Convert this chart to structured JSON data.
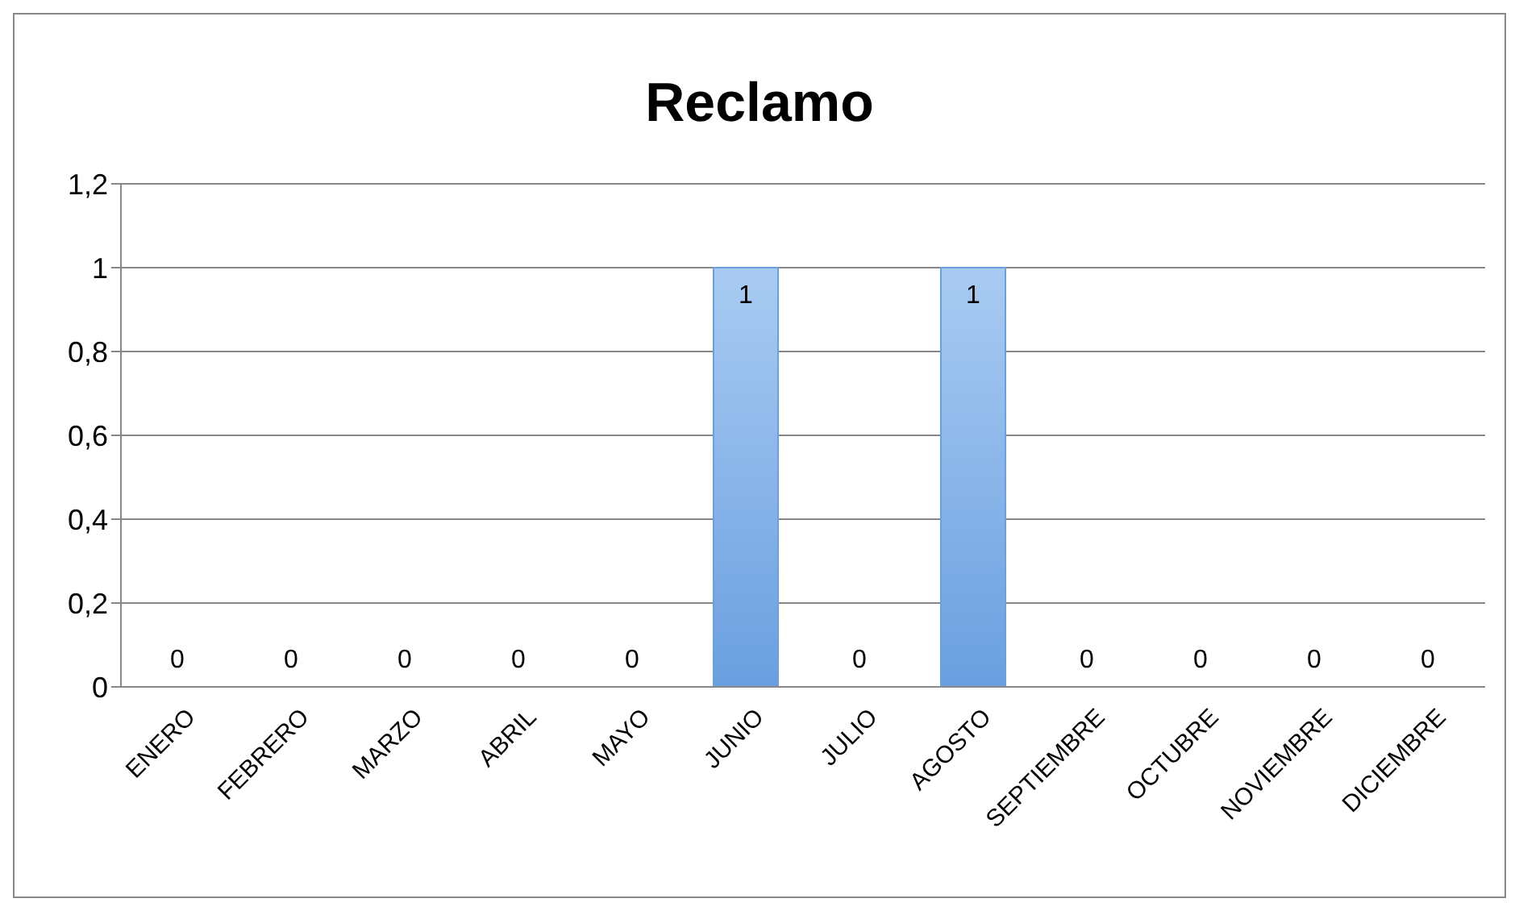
{
  "chart_data": {
    "type": "bar",
    "title": "Reclamo",
    "categories": [
      "ENERO",
      "FEBRERO",
      "MARZO",
      "ABRIL",
      "MAYO",
      "JUNIO",
      "JULIO",
      "AGOSTO",
      "SEPTIEMBRE",
      "OCTUBRE",
      "NOVIEMBRE",
      "DICIEMBRE"
    ],
    "values": [
      0,
      0,
      0,
      0,
      0,
      1,
      0,
      1,
      0,
      0,
      0,
      0
    ],
    "color": "#6a9fe0",
    "ylim": [
      0,
      1.2
    ],
    "yticks": [
      0,
      {
        "value": 0.2,
        "label": "0,2"
      },
      {
        "value": 0.4,
        "label": "0,4"
      },
      {
        "value": 0.6,
        "label": "0,6"
      },
      {
        "value": 0.8,
        "label": "0,8"
      },
      1,
      {
        "value": 1.2,
        "label": "1,2"
      }
    ],
    "grid": "y",
    "data_labels": true,
    "legend": false
  }
}
